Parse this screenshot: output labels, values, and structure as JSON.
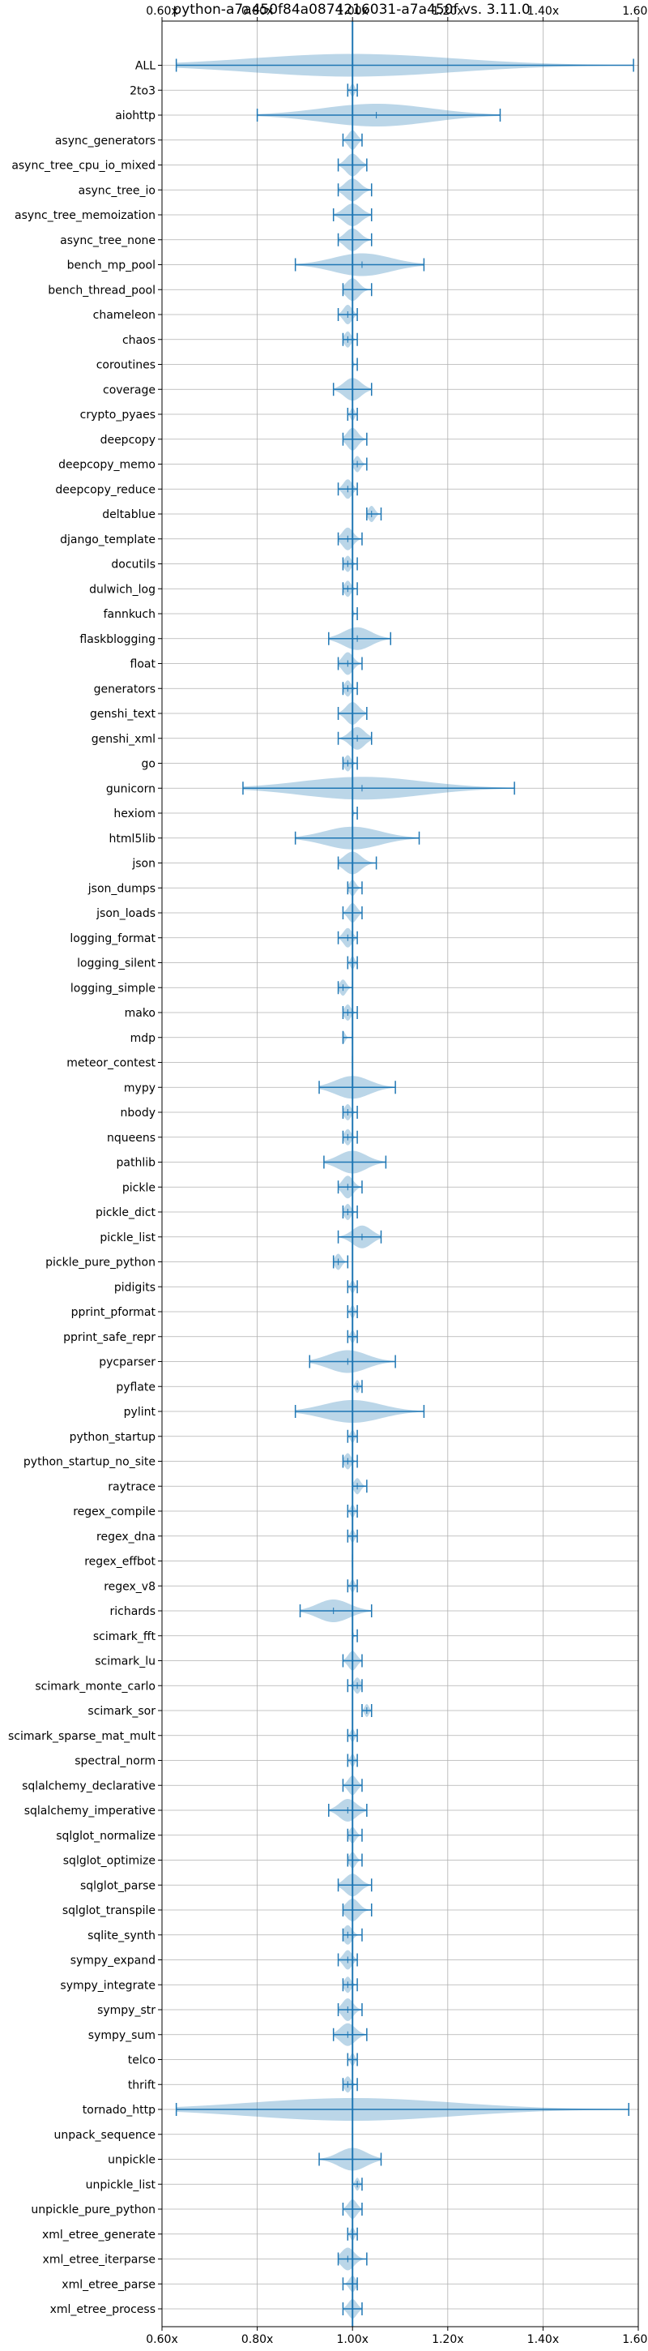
{
  "chart_data": {
    "type": "violin",
    "title": "python-a7a450f84a0874216031-a7a450f vs. 3.11.0",
    "orientation": "horizontal",
    "xlim": [
      0.6,
      1.6
    ],
    "xticks": [
      0.6,
      0.8,
      1.0,
      1.2,
      1.4,
      1.6
    ],
    "xtick_labels": [
      "0.60x",
      "0.80x",
      "1.00x",
      "1.20x",
      "1.40x",
      "1.60x"
    ],
    "ticks_top_and_bottom": true,
    "grid": true,
    "reference_line": 1.0,
    "colors": {
      "violin": "#1f77b4",
      "grid": "#b0b0b0"
    },
    "benchmarks": [
      {
        "name": "ALL",
        "min": 0.63,
        "max": 1.59,
        "median": 1.0
      },
      {
        "name": "2to3",
        "min": 0.99,
        "max": 1.01,
        "median": 1.0
      },
      {
        "name": "aiohttp",
        "min": 0.8,
        "max": 1.31,
        "median": 1.05
      },
      {
        "name": "async_generators",
        "min": 0.98,
        "max": 1.02,
        "median": 1.0
      },
      {
        "name": "async_tree_cpu_io_mixed",
        "min": 0.97,
        "max": 1.03,
        "median": 1.0
      },
      {
        "name": "async_tree_io",
        "min": 0.97,
        "max": 1.04,
        "median": 1.0
      },
      {
        "name": "async_tree_memoization",
        "min": 0.96,
        "max": 1.04,
        "median": 1.0
      },
      {
        "name": "async_tree_none",
        "min": 0.97,
        "max": 1.04,
        "median": 1.0
      },
      {
        "name": "bench_mp_pool",
        "min": 0.88,
        "max": 1.15,
        "median": 1.02
      },
      {
        "name": "bench_thread_pool",
        "min": 0.98,
        "max": 1.04,
        "median": 1.0
      },
      {
        "name": "chameleon",
        "min": 0.97,
        "max": 1.01,
        "median": 0.99
      },
      {
        "name": "chaos",
        "min": 0.98,
        "max": 1.01,
        "median": 0.99
      },
      {
        "name": "coroutines",
        "min": 1.0,
        "max": 1.01,
        "median": 1.0
      },
      {
        "name": "coverage",
        "min": 0.96,
        "max": 1.04,
        "median": 1.0
      },
      {
        "name": "crypto_pyaes",
        "min": 0.99,
        "max": 1.01,
        "median": 1.0
      },
      {
        "name": "deepcopy",
        "min": 0.98,
        "max": 1.03,
        "median": 1.0
      },
      {
        "name": "deepcopy_memo",
        "min": 1.0,
        "max": 1.03,
        "median": 1.01
      },
      {
        "name": "deepcopy_reduce",
        "min": 0.97,
        "max": 1.01,
        "median": 0.99
      },
      {
        "name": "deltablue",
        "min": 1.03,
        "max": 1.06,
        "median": 1.04
      },
      {
        "name": "django_template",
        "min": 0.97,
        "max": 1.02,
        "median": 0.99
      },
      {
        "name": "docutils",
        "min": 0.98,
        "max": 1.01,
        "median": 0.99
      },
      {
        "name": "dulwich_log",
        "min": 0.98,
        "max": 1.01,
        "median": 0.99
      },
      {
        "name": "fannkuch",
        "min": 1.0,
        "max": 1.01,
        "median": 1.0
      },
      {
        "name": "flaskblogging",
        "min": 0.95,
        "max": 1.08,
        "median": 1.01
      },
      {
        "name": "float",
        "min": 0.97,
        "max": 1.02,
        "median": 0.99
      },
      {
        "name": "generators",
        "min": 0.98,
        "max": 1.01,
        "median": 0.99
      },
      {
        "name": "genshi_text",
        "min": 0.97,
        "max": 1.03,
        "median": 1.0
      },
      {
        "name": "genshi_xml",
        "min": 0.97,
        "max": 1.04,
        "median": 1.01
      },
      {
        "name": "go",
        "min": 0.98,
        "max": 1.01,
        "median": 0.99
      },
      {
        "name": "gunicorn",
        "min": 0.77,
        "max": 1.34,
        "median": 1.02
      },
      {
        "name": "hexiom",
        "min": 1.0,
        "max": 1.01,
        "median": 1.0
      },
      {
        "name": "html5lib",
        "min": 0.88,
        "max": 1.14,
        "median": 1.0
      },
      {
        "name": "json",
        "min": 0.97,
        "max": 1.05,
        "median": 1.0
      },
      {
        "name": "json_dumps",
        "min": 0.99,
        "max": 1.02,
        "median": 1.0
      },
      {
        "name": "json_loads",
        "min": 0.98,
        "max": 1.02,
        "median": 1.0
      },
      {
        "name": "logging_format",
        "min": 0.97,
        "max": 1.01,
        "median": 0.99
      },
      {
        "name": "logging_silent",
        "min": 0.99,
        "max": 1.01,
        "median": 1.0
      },
      {
        "name": "logging_simple",
        "min": 0.97,
        "max": 1.0,
        "median": 0.98
      },
      {
        "name": "mako",
        "min": 0.98,
        "max": 1.01,
        "median": 0.99
      },
      {
        "name": "mdp",
        "min": 0.98,
        "max": 1.0,
        "median": 0.98
      },
      {
        "name": "meteor_contest",
        "min": 1.0,
        "max": 1.0,
        "median": 1.0
      },
      {
        "name": "mypy",
        "min": 0.93,
        "max": 1.09,
        "median": 1.0
      },
      {
        "name": "nbody",
        "min": 0.98,
        "max": 1.01,
        "median": 0.99
      },
      {
        "name": "nqueens",
        "min": 0.98,
        "max": 1.01,
        "median": 0.99
      },
      {
        "name": "pathlib",
        "min": 0.94,
        "max": 1.07,
        "median": 1.0
      },
      {
        "name": "pickle",
        "min": 0.97,
        "max": 1.02,
        "median": 0.99
      },
      {
        "name": "pickle_dict",
        "min": 0.98,
        "max": 1.01,
        "median": 0.99
      },
      {
        "name": "pickle_list",
        "min": 0.97,
        "max": 1.06,
        "median": 1.02
      },
      {
        "name": "pickle_pure_python",
        "min": 0.96,
        "max": 0.99,
        "median": 0.97
      },
      {
        "name": "pidigits",
        "min": 0.99,
        "max": 1.01,
        "median": 1.0
      },
      {
        "name": "pprint_pformat",
        "min": 0.99,
        "max": 1.01,
        "median": 1.0
      },
      {
        "name": "pprint_safe_repr",
        "min": 0.99,
        "max": 1.01,
        "median": 1.0
      },
      {
        "name": "pycparser",
        "min": 0.91,
        "max": 1.09,
        "median": 0.99
      },
      {
        "name": "pyflate",
        "min": 1.0,
        "max": 1.02,
        "median": 1.01
      },
      {
        "name": "pylint",
        "min": 0.88,
        "max": 1.15,
        "median": 1.0
      },
      {
        "name": "python_startup",
        "min": 0.99,
        "max": 1.01,
        "median": 1.0
      },
      {
        "name": "python_startup_no_site",
        "min": 0.98,
        "max": 1.01,
        "median": 0.99
      },
      {
        "name": "raytrace",
        "min": 1.0,
        "max": 1.03,
        "median": 1.01
      },
      {
        "name": "regex_compile",
        "min": 0.99,
        "max": 1.01,
        "median": 1.0
      },
      {
        "name": "regex_dna",
        "min": 0.99,
        "max": 1.01,
        "median": 1.0
      },
      {
        "name": "regex_effbot",
        "min": 1.0,
        "max": 1.0,
        "median": 1.0
      },
      {
        "name": "regex_v8",
        "min": 0.99,
        "max": 1.01,
        "median": 1.0
      },
      {
        "name": "richards",
        "min": 0.89,
        "max": 1.04,
        "median": 0.96
      },
      {
        "name": "scimark_fft",
        "min": 1.0,
        "max": 1.01,
        "median": 1.0
      },
      {
        "name": "scimark_lu",
        "min": 0.98,
        "max": 1.02,
        "median": 1.0
      },
      {
        "name": "scimark_monte_carlo",
        "min": 0.99,
        "max": 1.02,
        "median": 1.01
      },
      {
        "name": "scimark_sor",
        "min": 1.02,
        "max": 1.04,
        "median": 1.03
      },
      {
        "name": "scimark_sparse_mat_mult",
        "min": 0.99,
        "max": 1.01,
        "median": 1.0
      },
      {
        "name": "spectral_norm",
        "min": 0.99,
        "max": 1.01,
        "median": 1.0
      },
      {
        "name": "sqlalchemy_declarative",
        "min": 0.98,
        "max": 1.02,
        "median": 1.0
      },
      {
        "name": "sqlalchemy_imperative",
        "min": 0.95,
        "max": 1.03,
        "median": 0.99
      },
      {
        "name": "sqlglot_normalize",
        "min": 0.99,
        "max": 1.02,
        "median": 1.0
      },
      {
        "name": "sqlglot_optimize",
        "min": 0.99,
        "max": 1.02,
        "median": 1.0
      },
      {
        "name": "sqlglot_parse",
        "min": 0.97,
        "max": 1.04,
        "median": 1.0
      },
      {
        "name": "sqlglot_transpile",
        "min": 0.98,
        "max": 1.04,
        "median": 1.0
      },
      {
        "name": "sqlite_synth",
        "min": 0.98,
        "max": 1.02,
        "median": 0.99
      },
      {
        "name": "sympy_expand",
        "min": 0.97,
        "max": 1.01,
        "median": 0.99
      },
      {
        "name": "sympy_integrate",
        "min": 0.98,
        "max": 1.01,
        "median": 0.99
      },
      {
        "name": "sympy_str",
        "min": 0.97,
        "max": 1.02,
        "median": 0.99
      },
      {
        "name": "sympy_sum",
        "min": 0.96,
        "max": 1.03,
        "median": 0.99
      },
      {
        "name": "telco",
        "min": 0.99,
        "max": 1.01,
        "median": 1.0
      },
      {
        "name": "thrift",
        "min": 0.98,
        "max": 1.01,
        "median": 0.99
      },
      {
        "name": "tornado_http",
        "min": 0.63,
        "max": 1.58,
        "median": 1.0
      },
      {
        "name": "unpack_sequence",
        "min": 1.0,
        "max": 1.0,
        "median": 1.0
      },
      {
        "name": "unpickle",
        "min": 0.93,
        "max": 1.06,
        "median": 1.0
      },
      {
        "name": "unpickle_list",
        "min": 1.0,
        "max": 1.02,
        "median": 1.01
      },
      {
        "name": "unpickle_pure_python",
        "min": 0.98,
        "max": 1.02,
        "median": 1.0
      },
      {
        "name": "xml_etree_generate",
        "min": 0.99,
        "max": 1.01,
        "median": 1.0
      },
      {
        "name": "xml_etree_iterparse",
        "min": 0.97,
        "max": 1.03,
        "median": 0.99
      },
      {
        "name": "xml_etree_parse",
        "min": 0.98,
        "max": 1.01,
        "median": 1.0
      },
      {
        "name": "xml_etree_process",
        "min": 0.98,
        "max": 1.02,
        "median": 1.0
      }
    ]
  }
}
